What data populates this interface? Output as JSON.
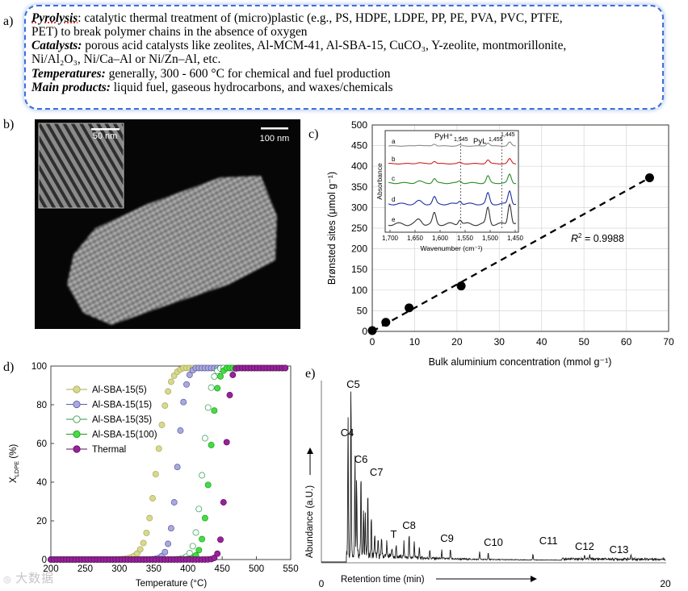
{
  "panel_a": {
    "label": "a)",
    "pyrolysis": {
      "term": "Pyrolysis",
      "text_line1": ": catalytic thermal treatment of (micro)plastic (e.g., PS, HDPE, LDPE, PP, PE, PVA, PVC, PTFE,",
      "text_line2": "PET) to break polymer chains in the absence of oxygen"
    },
    "catalysts": {
      "term": "Catalysts:",
      "text_line1": " porous acid catalysts like zeolites, Al-MCM-41, Al-SBA-15, CuCO₃, Y-zeolite, montmorillonite,",
      "text_line2": "Ni/Al₂O₃, Ni/Ca–Al or Ni/Zn–Al, etc."
    },
    "temperatures": {
      "term": "Temperatures:",
      "text": " generally, 300 - 600 °C for chemical and fuel production"
    },
    "products": {
      "term": "Main products:",
      "text": " liquid fuel, gaseous hydrocarbons, and waxes/chemicals"
    }
  },
  "panel_b": {
    "label": "b)",
    "inset_scale": "50 nm",
    "main_scale": "100 nm"
  },
  "panel_c": {
    "label": "c)",
    "chart_data": {
      "type": "scatter",
      "xlabel": "Bulk aluminium concentration (mmol g⁻¹)",
      "ylabel": "Brønsted sites (μmol g⁻¹)",
      "xlim": [
        0,
        70
      ],
      "ylim": [
        0,
        500
      ],
      "xticks": [
        "0",
        "10",
        "20",
        "30",
        "40",
        "50",
        "60",
        "70"
      ],
      "yticks": [
        "0",
        "50",
        "100",
        "150",
        "200",
        "250",
        "300",
        "350",
        "400",
        "450",
        "500"
      ],
      "x": [
        0,
        3.2,
        8.7,
        21,
        65.5
      ],
      "y": [
        2,
        22,
        57,
        110,
        372
      ],
      "fit": {
        "x": [
          0,
          65.5
        ],
        "y": [
          0,
          372
        ],
        "r2_label": "R",
        "r2_sup": "2",
        "r2_value": " = 0.9988"
      },
      "inset": {
        "xlabel": "Wavenumber (cm⁻¹)",
        "ylabel": "Absorbance",
        "xticks": [
          "1,700",
          "1,650",
          "1,600",
          "1,550",
          "1,500",
          "1,450"
        ],
        "annotations": [
          "PyH⁺",
          "1,545",
          "PyL",
          "1,455",
          "1,445"
        ],
        "traces": [
          "a",
          "b",
          "c",
          "d",
          "e"
        ],
        "trace_colors": [
          "#8a8a8a",
          "#d02020",
          "#2a8a2a",
          "#1f2f9f",
          "#333333"
        ]
      }
    }
  },
  "panel_d": {
    "label": "d)",
    "chart_data": {
      "type": "line",
      "xlabel": "Temperature (°C)",
      "ylabel": "X",
      "ylabel_sub": "LDPE",
      "ylabel_unit": " (%)",
      "xlim": [
        200,
        550
      ],
      "ylim": [
        0,
        100
      ],
      "xticks": [
        "200",
        "250",
        "300",
        "350",
        "400",
        "450",
        "500",
        "550"
      ],
      "yticks": [
        "0",
        "20",
        "40",
        "60",
        "80",
        "100"
      ],
      "series": [
        {
          "name": "Al-SBA-15(5)",
          "t50": 355,
          "width": 22,
          "color": "#d8d890",
          "edge": "#a9a955",
          "filled": true
        },
        {
          "name": "Al-SBA-15(15)",
          "t50": 385,
          "width": 15,
          "color": "#a9a9dd",
          "edge": "#5b5ba6",
          "filled": true
        },
        {
          "name": "Al-SBA-15(35)",
          "t50": 422,
          "width": 15,
          "color": "#ffffff",
          "edge": "#2e9a4a",
          "filled": false
        },
        {
          "name": "Al-SBA-15(100)",
          "t50": 432,
          "width": 14,
          "color": "#44dd44",
          "edge": "#1e9a1e",
          "filled": true
        },
        {
          "name": "Thermal",
          "t50": 455,
          "width": 9,
          "color": "#99229a",
          "edge": "#5e0e60",
          "filled": true
        }
      ]
    }
  },
  "panel_e": {
    "label": "e)",
    "chart_data": {
      "type": "line",
      "xlabel": "Retention time (min)",
      "ylabel": "Abundance (a.U.)",
      "xlim": [
        0,
        20
      ],
      "xticks": [
        "0",
        "20"
      ],
      "peaks": [
        "C4",
        "C5",
        "C6",
        "C7",
        "T",
        "C8",
        "C9",
        "C10",
        "C11",
        "C12",
        "C13"
      ]
    }
  },
  "watermark": "大数据"
}
